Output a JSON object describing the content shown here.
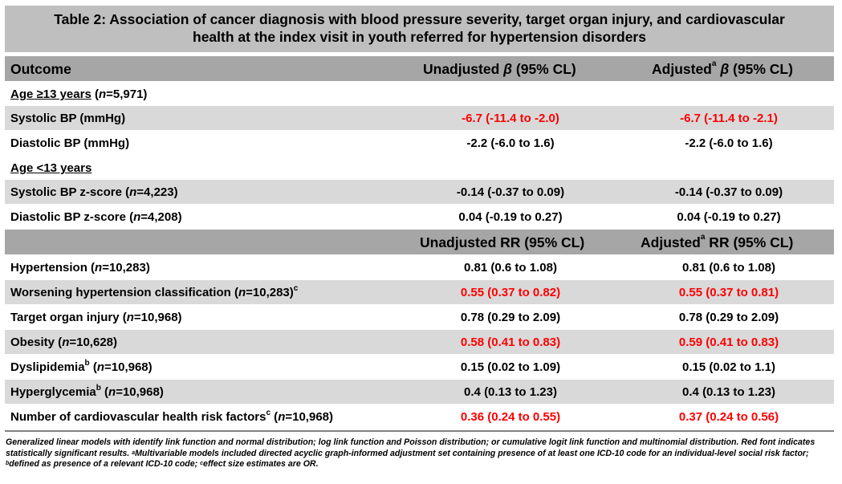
{
  "title": {
    "line1": "Table 2: Association of cancer diagnosis with blood pressure severity, target organ injury, and cardiovascular",
    "line2": "health at the index visit in youth referred for hypertension disorders"
  },
  "header1": {
    "outcome": "Outcome",
    "unadj_pre": "Unadjusted ",
    "beta": "β",
    "ci": " (95% CL)",
    "adj_pre": "Adjusted",
    "adj_sup": "a"
  },
  "header2": {
    "unadj": "Unadjusted RR (95% CL)",
    "adj_pre": "Adjusted",
    "adj_sup": "a",
    "adj_post": " RR (95% CL)"
  },
  "sections": {
    "age13": {
      "label": "Age ≥13 years",
      "n_pre": " (",
      "n_var": "n",
      "n_val": "=5,971)"
    },
    "ageLt13": {
      "label": "Age <13 years"
    }
  },
  "rows": [
    {
      "label": "Systolic BP (mmHg)",
      "unadj": "-6.7 (-11.4 to -2.0)",
      "adj": "-6.7 (-11.4 to -2.1)"
    },
    {
      "label": "Diastolic BP (mmHg)",
      "unadj": "-2.2 (-6.0 to 1.6)",
      "adj": "-2.2 (-6.0 to 1.6)"
    },
    {
      "label": "Systolic BP z-score (",
      "n": "=4,223)",
      "unadj": "-0.14 (-0.37 to 0.09)",
      "adj": "-0.14 (-0.37 to 0.09)"
    },
    {
      "label": "Diastolic BP z-score (",
      "n": "=4,208)",
      "unadj": "0.04 (-0.19 to 0.27)",
      "adj": "0.04 (-0.19 to 0.27)"
    },
    {
      "label": "Hypertension (",
      "n": "=10,283)",
      "unadj": "0.81 (0.6 to 1.08)",
      "adj": "0.81 (0.6 to 1.08)"
    },
    {
      "label": "Worsening hypertension classification (",
      "n": "=10,283)",
      "sup": "c",
      "unadj": "0.55 (0.37 to 0.82)",
      "adj": "0.55 (0.37 to 0.81)"
    },
    {
      "label": "Target organ injury (",
      "n": "=10,968)",
      "unadj": "0.78 (0.29 to 2.09)",
      "adj": "0.78 (0.29 to 2.09)"
    },
    {
      "label": "Obesity (",
      "n": "=10,628)",
      "unadj": "0.58 (0.41 to 0.83)",
      "adj": "0.59 (0.41 to 0.83)"
    },
    {
      "label": "Dyslipidemia",
      "sup": "b",
      "label2": " (",
      "n": "=10,968)",
      "unadj": "0.15 (0.02 to 1.09)",
      "adj": "0.15 (0.02 to 1.1)"
    },
    {
      "label": "Hyperglycemia",
      "sup": "b",
      "label2": " (",
      "n": "=10,968)",
      "unadj": "0.4 (0.13 to 1.23)",
      "adj": "0.4 (0.13 to 1.23)"
    },
    {
      "label": "Number of cardiovascular health risk factors",
      "sup": "c",
      "label2": " (",
      "n": "=10,968)",
      "unadj": "0.36 (0.24 to 0.55)",
      "adj": "0.37 (0.24 to 0.56)"
    }
  ],
  "footnote": {
    "p1": "Generalized linear models with identify link function and normal distribution; log link function and Poisson distribution; or cumulative logit link function and multinomial distribution. Red font indicates statistically significant results. ",
    "sup_a": "a",
    "p2": "Multivariable models included directed acyclic graph-informed adjustment set containing presence of at least one ICD-10 code for an individual-level social risk factor; ",
    "sup_b": "b",
    "p3": "defined as presence of a relevant ICD-10 code; ",
    "sup_c": "c",
    "p4": "effect size estimates are OR."
  },
  "colors": {
    "significant": "#ff0000",
    "title_bg": "#bfbfbf",
    "header_bg": "#a6a6a6",
    "shade_bg": "#d9d9d9"
  }
}
